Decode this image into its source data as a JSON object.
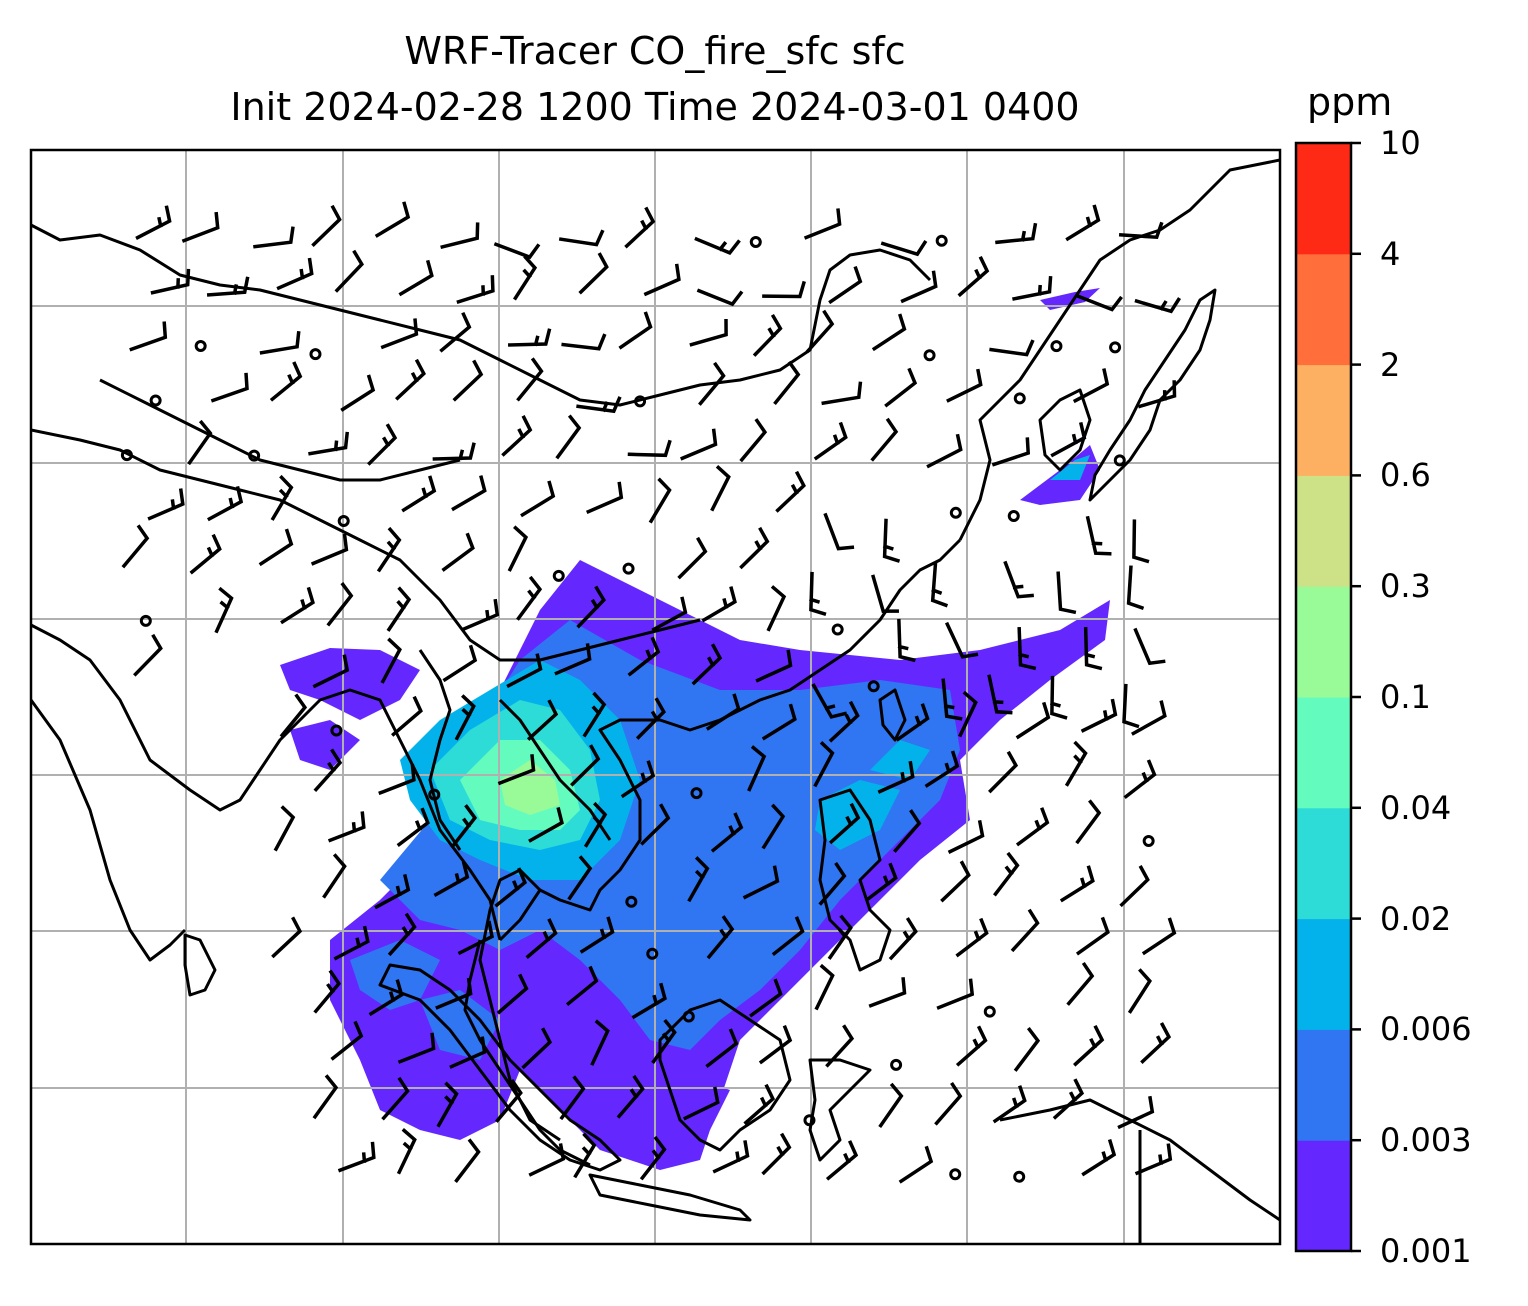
{
  "title": {
    "line1": "WRF-Tracer CO_fire_sfc sfc",
    "line2": "Init 2024-02-28 1200 Time 2024-03-01 0400"
  },
  "colorbar": {
    "unit": "ppm",
    "levels": [
      "0.001",
      "0.003",
      "0.006",
      "0.02",
      "0.04",
      "0.1",
      "0.3",
      "0.6",
      "2",
      "4",
      "10"
    ],
    "colors": [
      "#6428ff",
      "#3075f2",
      "#04b2eb",
      "#2ddcd6",
      "#64fbbe",
      "#98fb98",
      "#cde187",
      "#fdb062",
      "#ff6e3b",
      "#ff2a15"
    ]
  },
  "map": {
    "field": "CO_fire_sfc",
    "projection": "regional map, Southeast and East Asia",
    "gridlines": true,
    "coastlines": true,
    "wind_barbs": true,
    "calm_markers": "circles"
  }
}
